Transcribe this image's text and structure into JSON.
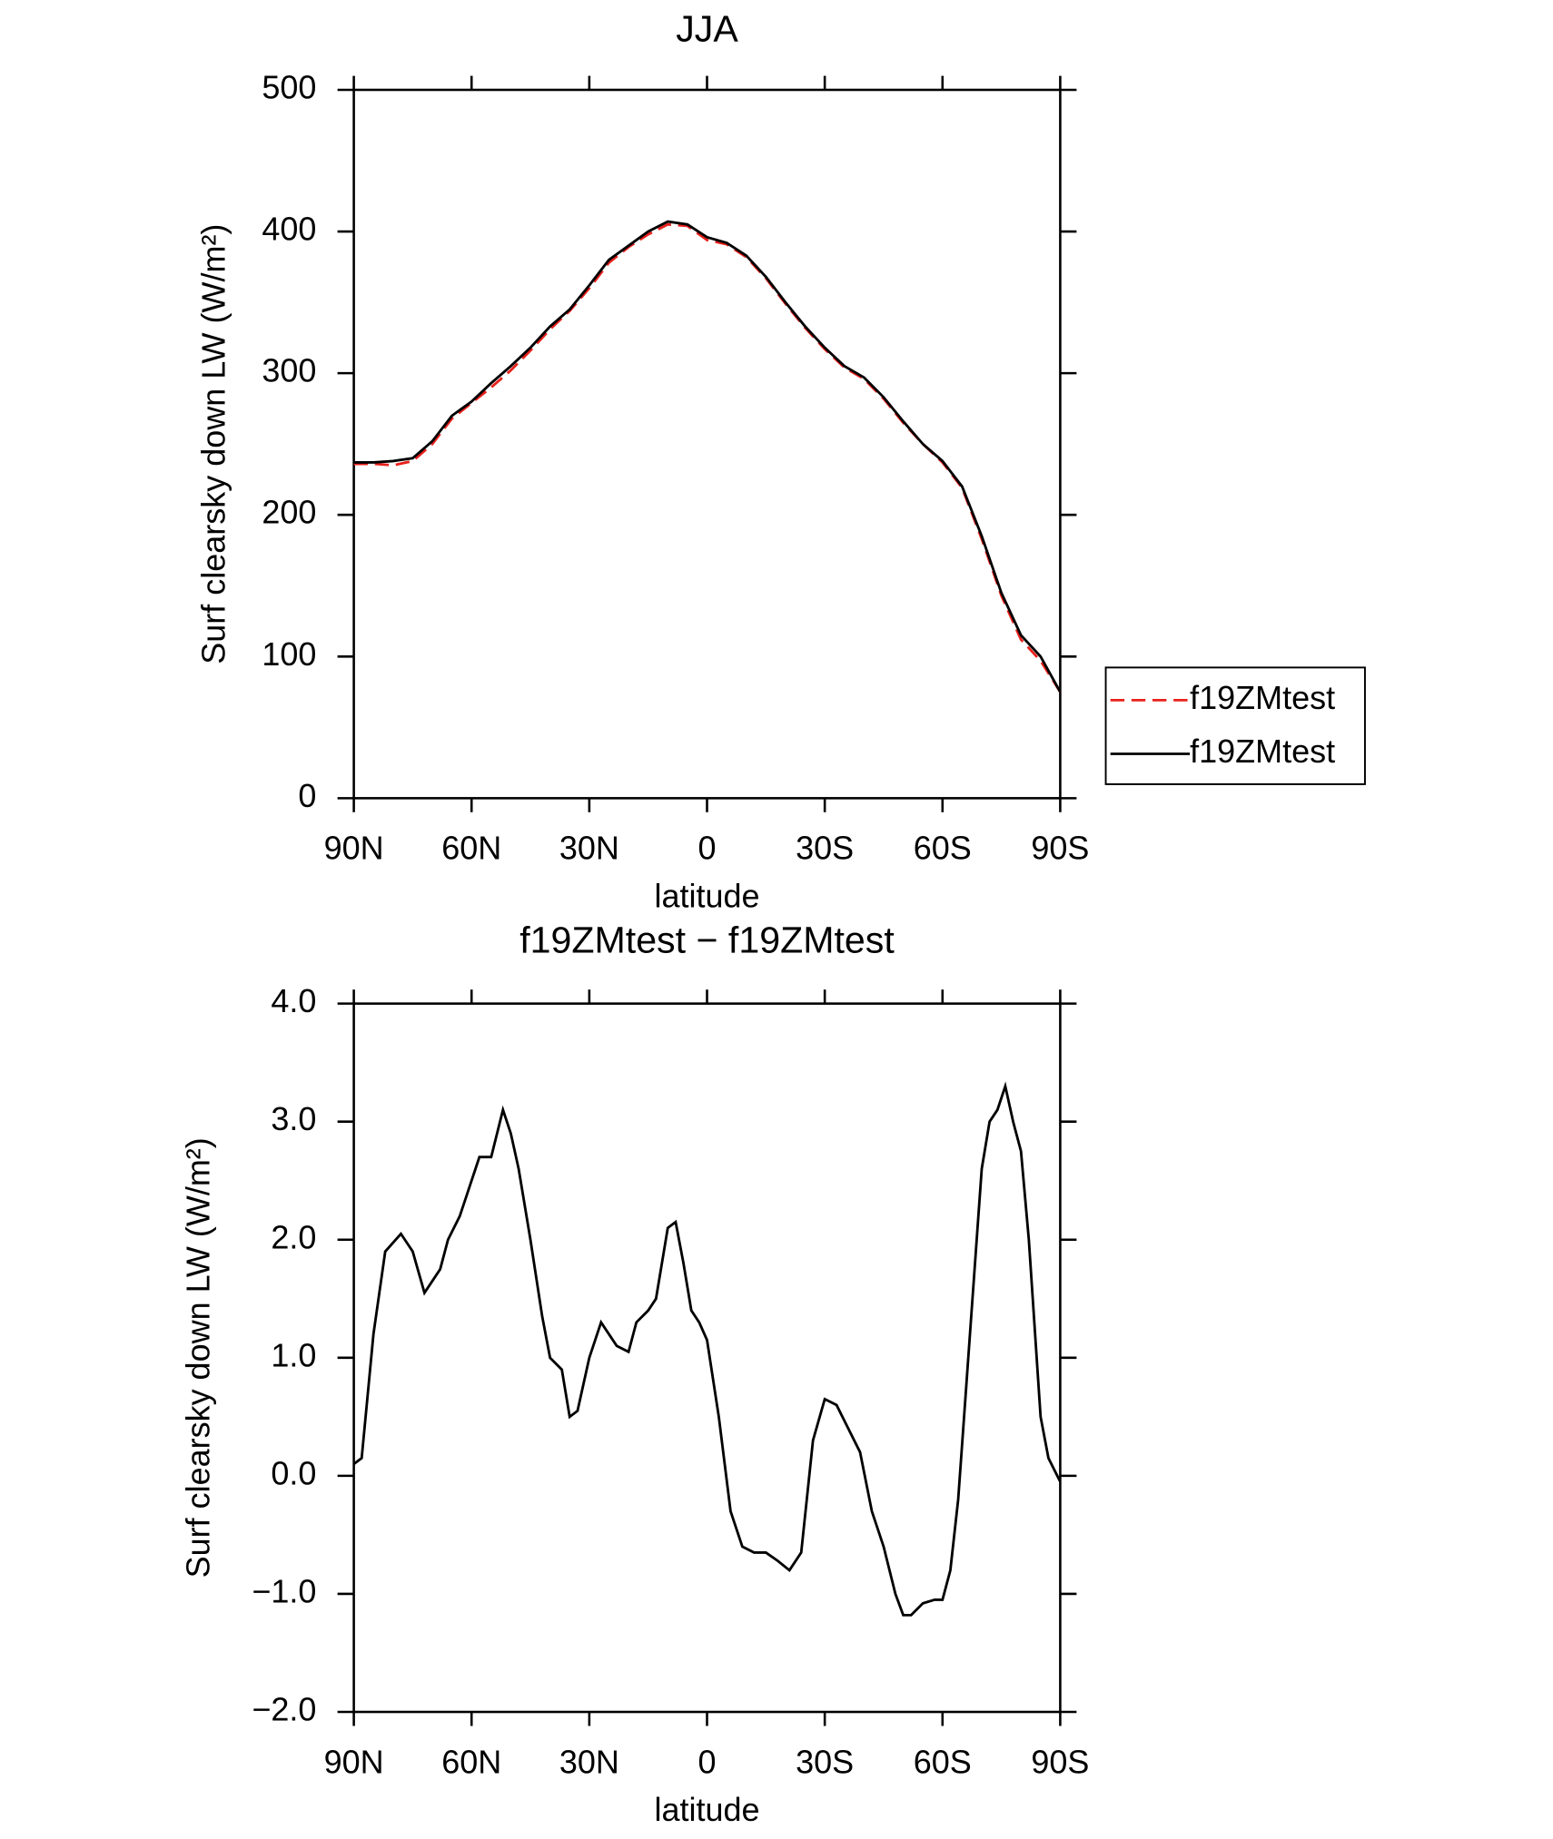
{
  "chart_data": [
    {
      "type": "line",
      "title": "JJA",
      "xlabel": "latitude",
      "ylabel": "Surf clearsky down LW (W/m²)",
      "x": [
        90,
        85,
        80,
        75,
        70,
        65,
        60,
        55,
        50,
        45,
        40,
        35,
        30,
        25,
        20,
        15,
        10,
        5,
        0,
        -5,
        -10,
        -15,
        -20,
        -25,
        -30,
        -35,
        -40,
        -45,
        -50,
        -55,
        -60,
        -65,
        -70,
        -75,
        -80,
        -85,
        -90
      ],
      "series": [
        {
          "name": "f19ZMtest",
          "color": "#e8211c",
          "dash": true,
          "values": [
            236,
            236,
            235,
            238,
            250,
            268,
            279,
            290,
            302,
            316,
            331,
            344,
            360,
            378,
            389,
            398,
            405,
            404,
            394,
            391,
            382,
            367,
            349,
            332,
            317,
            304,
            296,
            282,
            265,
            250,
            237,
            219,
            183,
            143,
            112,
            97,
            75
          ]
        },
        {
          "name": "f19ZMtest",
          "color": "#000000",
          "dash": false,
          "values": [
            237,
            237,
            238,
            240,
            252,
            270,
            280,
            293,
            305,
            318,
            333,
            345,
            362,
            380,
            390,
            400,
            407,
            405,
            396,
            392,
            383,
            368,
            350,
            333,
            318,
            305,
            297,
            283,
            266,
            250,
            238,
            220,
            185,
            145,
            115,
            100,
            75
          ]
        }
      ],
      "xlim": [
        90,
        -90
      ],
      "xticks": [
        {
          "value": 90,
          "label": "90N"
        },
        {
          "value": 60,
          "label": "60N"
        },
        {
          "value": 30,
          "label": "30N"
        },
        0,
        {
          "value": -30,
          "label": "30S"
        },
        {
          "value": -60,
          "label": "60S"
        },
        {
          "value": -90,
          "label": "90S"
        }
      ],
      "ylim": [
        0,
        500
      ],
      "yticks": [
        0,
        100,
        200,
        300,
        400,
        500
      ],
      "legend": true
    },
    {
      "type": "line",
      "title": "f19ZMtest − f19ZMtest",
      "xlabel": "latitude",
      "ylabel": "Surf clearsky down LW (W/m²)",
      "x": [
        90,
        88,
        85,
        82,
        78,
        75,
        72,
        70,
        68,
        66,
        63,
        60,
        58,
        55,
        52,
        50,
        48,
        45,
        42,
        40,
        37,
        35,
        33,
        30,
        27,
        25,
        23,
        20,
        18,
        15,
        13,
        10,
        8,
        6,
        4,
        2,
        0,
        -3,
        -6,
        -9,
        -12,
        -15,
        -18,
        -21,
        -24,
        -27,
        -30,
        -33,
        -36,
        -39,
        -42,
        -45,
        -48,
        -50,
        -52,
        -55,
        -58,
        -60,
        -62,
        -64,
        -67,
        -70,
        -72,
        -74,
        -76,
        -78,
        -80,
        -82,
        -85,
        -87,
        -90
      ],
      "series": [
        {
          "name": "f19ZMtest − f19ZMtest",
          "color": "#000000",
          "dash": false,
          "values": [
            0.1,
            0.15,
            1.2,
            1.9,
            2.05,
            1.9,
            1.55,
            1.65,
            1.75,
            2.0,
            2.2,
            2.5,
            2.7,
            2.7,
            3.1,
            2.9,
            2.6,
            2.0,
            1.35,
            1.0,
            0.9,
            0.5,
            0.55,
            1.0,
            1.3,
            1.2,
            1.1,
            1.05,
            1.3,
            1.4,
            1.5,
            2.1,
            2.15,
            1.8,
            1.4,
            1.3,
            1.15,
            0.5,
            -0.3,
            -0.6,
            -0.65,
            -0.65,
            -0.72,
            -0.8,
            -0.65,
            0.3,
            0.65,
            0.6,
            0.4,
            0.2,
            -0.3,
            -0.6,
            -1.0,
            -1.18,
            -1.18,
            -1.08,
            -1.05,
            -1.05,
            -0.8,
            -0.2,
            1.2,
            2.6,
            3.0,
            3.1,
            3.3,
            3.0,
            2.75,
            2.0,
            0.5,
            0.15,
            -0.05
          ]
        }
      ],
      "xlim": [
        90,
        -90
      ],
      "xticks": [
        {
          "value": 90,
          "label": "90N"
        },
        {
          "value": 60,
          "label": "60N"
        },
        {
          "value": 30,
          "label": "30N"
        },
        0,
        {
          "value": -30,
          "label": "30S"
        },
        {
          "value": -60,
          "label": "60S"
        },
        {
          "value": -90,
          "label": "90S"
        }
      ],
      "ylim": [
        -2,
        4
      ],
      "yticks": [
        {
          "value": -2,
          "label": "−2.0"
        },
        {
          "value": -1,
          "label": "−1.0"
        },
        {
          "value": 0,
          "label": "0.0"
        },
        {
          "value": 1,
          "label": "1.0"
        },
        {
          "value": 2,
          "label": "2.0"
        },
        {
          "value": 3,
          "label": "3.0"
        },
        {
          "value": 4,
          "label": "4.0"
        }
      ],
      "legend": false
    }
  ]
}
